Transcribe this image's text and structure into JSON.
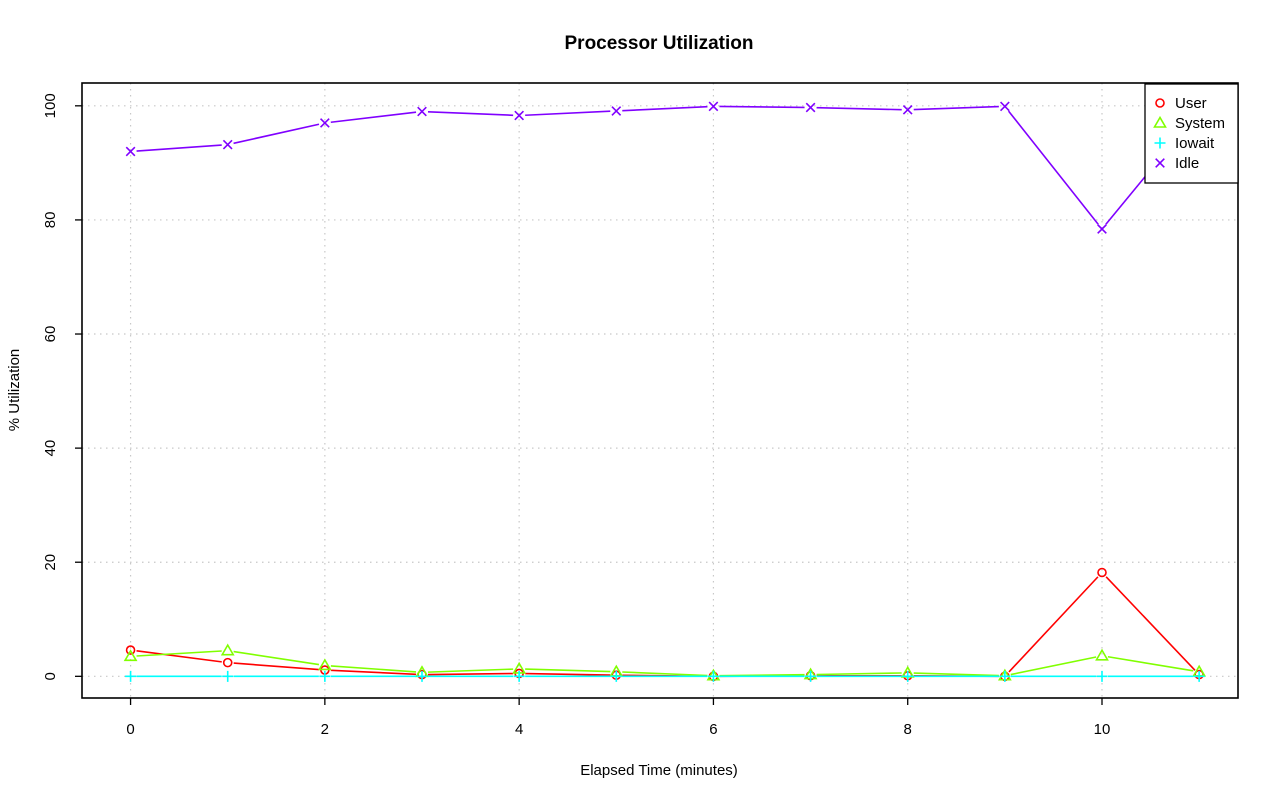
{
  "chart_data": {
    "type": "line",
    "title": "Processor Utilization",
    "xlabel": "Elapsed Time (minutes)",
    "ylabel": "% Utilization",
    "x": [
      0,
      1,
      2,
      3,
      4,
      5,
      6,
      7,
      8,
      9,
      10,
      11
    ],
    "xlim": [
      -0.5,
      11.4
    ],
    "ylim": [
      -3.8,
      104
    ],
    "x_ticks": [
      0,
      2,
      4,
      6,
      8,
      10
    ],
    "y_ticks": [
      0,
      20,
      40,
      60,
      80,
      100
    ],
    "grid": true,
    "legend_position": "top-right",
    "series": [
      {
        "name": "User",
        "color": "#ff0000",
        "marker": "circle",
        "values": [
          4.6,
          2.4,
          1.1,
          0.3,
          0.5,
          0.2,
          0.0,
          0.1,
          0.1,
          0.0,
          18.2,
          0.3
        ]
      },
      {
        "name": "System",
        "color": "#80ff00",
        "marker": "triangle",
        "values": [
          3.5,
          4.5,
          1.9,
          0.7,
          1.3,
          0.8,
          0.1,
          0.3,
          0.6,
          0.1,
          3.6,
          0.8
        ]
      },
      {
        "name": "Iowait",
        "color": "#00ffff",
        "marker": "plus",
        "values": [
          0,
          0,
          0,
          0,
          0,
          0,
          0,
          0,
          0,
          0,
          0,
          0
        ]
      },
      {
        "name": "Idle",
        "color": "#8000ff",
        "marker": "cross",
        "values": [
          92.0,
          93.2,
          97.0,
          99.0,
          98.3,
          99.1,
          99.9,
          99.7,
          99.3,
          99.9,
          78.4,
          99.1
        ]
      }
    ]
  }
}
